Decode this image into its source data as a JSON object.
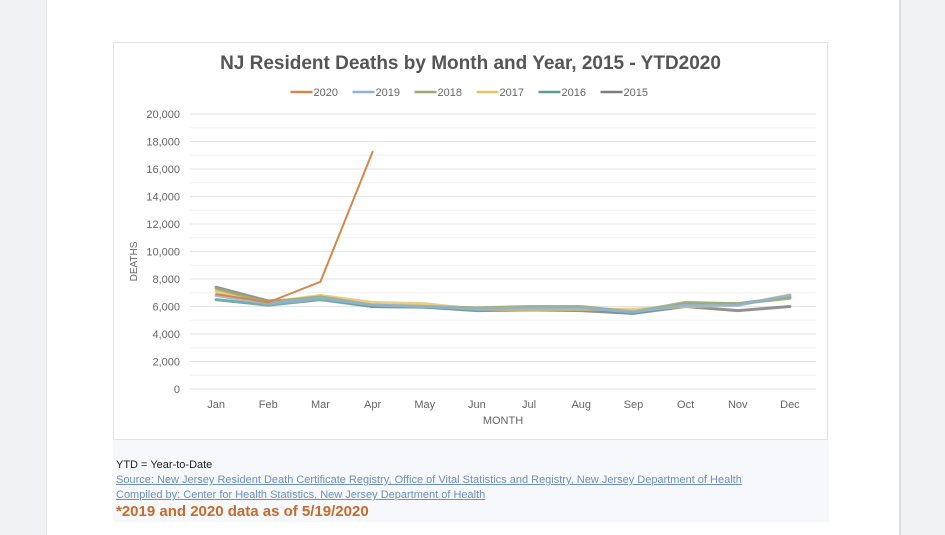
{
  "chart_data": {
    "type": "line",
    "title": "NJ Resident Deaths by Month and Year, 2015 - YTD2020",
    "xlabel": "MONTH",
    "ylabel": "DEATHS",
    "ylim": [
      0,
      20000
    ],
    "yticks": [
      0,
      2000,
      4000,
      6000,
      8000,
      10000,
      12000,
      14000,
      16000,
      18000,
      20000
    ],
    "ytick_labels": [
      "0",
      "2,000",
      "4,000",
      "6,000",
      "8,000",
      "10,000",
      "12,000",
      "14,000",
      "16,000",
      "18,000",
      "20,000"
    ],
    "grid": true,
    "legend_position": "top",
    "categories": [
      "Jan",
      "Feb",
      "Mar",
      "Apr",
      "May",
      "Jun",
      "Jul",
      "Aug",
      "Sep",
      "Oct",
      "Nov",
      "Dec"
    ],
    "series": [
      {
        "name": "2015",
        "color": "#7f7f7f",
        "values": [
          7400,
          6400,
          6600,
          6000,
          5950,
          5700,
          5750,
          5700,
          5500,
          6000,
          5700,
          6000
        ]
      },
      {
        "name": "2016",
        "color": "#5f9e96",
        "values": [
          6500,
          6100,
          6500,
          6000,
          5950,
          5750,
          5900,
          5900,
          5500,
          6200,
          6200,
          6700
        ]
      },
      {
        "name": "2017",
        "color": "#e8c46a",
        "values": [
          7100,
          6300,
          6800,
          6300,
          6200,
          5800,
          5800,
          5800,
          5800,
          6000,
          6100,
          6850
        ]
      },
      {
        "name": "2018",
        "color": "#9aa96f",
        "values": [
          7300,
          6300,
          6700,
          6100,
          6000,
          5900,
          6000,
          6000,
          5600,
          6300,
          6200,
          6600
        ]
      },
      {
        "name": "2019",
        "color": "#8fb3d6",
        "values": [
          6800,
          6200,
          6600,
          6100,
          6000,
          5800,
          5900,
          5900,
          5600,
          6100,
          6100,
          6800
        ]
      },
      {
        "name": "2020",
        "color": "#d9844a",
        "values": [
          6900,
          6300,
          7800,
          17250
        ]
      }
    ]
  },
  "notes": {
    "ytd": "YTD = Year-to-Date",
    "source": "Source:  New Jersey Resident Death Certificate Registry, Office of Vital Statistics and Registry, New Jersey Department of Health",
    "compiled": "Compiled by:  Center for Health Statistics, New Jersey Department of Health",
    "asof": "*2019 and 2020 data as of 5/19/2020"
  }
}
